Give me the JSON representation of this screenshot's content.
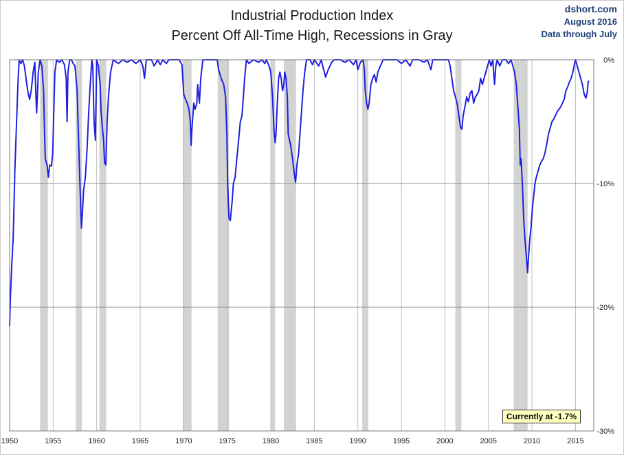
{
  "header": {
    "title_line1": "Industrial Production Index",
    "title_line2": "Percent Off All-Time High, Recessions in Gray",
    "credit_site": "dshort.com",
    "credit_date": "August 2016",
    "credit_note": "Data through July"
  },
  "annotation": {
    "current_label": "Currently at -1.7%"
  },
  "chart_data": {
    "type": "line",
    "title": "Industrial Production Index Percent Off All-Time High, Recessions in Gray",
    "xlabel": "",
    "ylabel": "",
    "xlim": [
      1950,
      2017.1
    ],
    "ylim": [
      -30,
      0
    ],
    "x_ticks": [
      1950,
      1955,
      1960,
      1965,
      1970,
      1975,
      1980,
      1985,
      1990,
      1995,
      2000,
      2005,
      2010,
      2015
    ],
    "y_ticks": [
      {
        "value": 0,
        "label": "0%"
      },
      {
        "value": -10,
        "label": "-10%"
      },
      {
        "value": -20,
        "label": "-20%"
      },
      {
        "value": -30,
        "label": "-30%"
      }
    ],
    "grid": true,
    "line_color": "#1f1fe0",
    "recession_color": "#d3d3d3",
    "recessions": [
      [
        1953.5,
        1954.4
      ],
      [
        1957.6,
        1958.3
      ],
      [
        1960.3,
        1961.1
      ],
      [
        1969.9,
        1970.9
      ],
      [
        1973.9,
        1975.2
      ],
      [
        1980.0,
        1980.5
      ],
      [
        1981.5,
        1982.9
      ],
      [
        1990.5,
        1991.2
      ],
      [
        2001.2,
        2001.9
      ],
      [
        2007.9,
        2009.5
      ]
    ],
    "series": [
      {
        "values": [
          [
            1950.0,
            -21.5
          ],
          [
            1950.1,
            -19.0
          ],
          [
            1950.25,
            -16.5
          ],
          [
            1950.4,
            -14.5
          ],
          [
            1950.5,
            -12.0
          ],
          [
            1950.6,
            -9.0
          ],
          [
            1950.75,
            -6.0
          ],
          [
            1950.9,
            -3.0
          ],
          [
            1951.0,
            -1.2
          ],
          [
            1951.1,
            0.0
          ],
          [
            1951.3,
            -0.3
          ],
          [
            1951.5,
            0.0
          ],
          [
            1951.7,
            -0.5
          ],
          [
            1951.9,
            -1.6
          ],
          [
            1952.1,
            -2.6
          ],
          [
            1952.3,
            -3.2
          ],
          [
            1952.5,
            -2.4
          ],
          [
            1952.7,
            -1.0
          ],
          [
            1952.9,
            -0.2
          ],
          [
            1953.0,
            -2.5
          ],
          [
            1953.1,
            -4.3
          ],
          [
            1953.3,
            -1.0
          ],
          [
            1953.5,
            0.0
          ],
          [
            1953.7,
            -0.5
          ],
          [
            1953.9,
            -2.5
          ],
          [
            1954.0,
            -5.5
          ],
          [
            1954.1,
            -8.0
          ],
          [
            1954.3,
            -8.5
          ],
          [
            1954.45,
            -9.5
          ],
          [
            1954.6,
            -8.5
          ],
          [
            1954.8,
            -8.6
          ],
          [
            1954.95,
            -7.6
          ],
          [
            1955.1,
            -3.5
          ],
          [
            1955.2,
            -1.0
          ],
          [
            1955.4,
            0.0
          ],
          [
            1955.7,
            -0.2
          ],
          [
            1956.0,
            0.0
          ],
          [
            1956.3,
            -0.4
          ],
          [
            1956.5,
            -1.5
          ],
          [
            1956.6,
            -5.0
          ],
          [
            1956.7,
            -1.0
          ],
          [
            1956.9,
            0.0
          ],
          [
            1957.1,
            0.0
          ],
          [
            1957.3,
            -0.3
          ],
          [
            1957.5,
            -0.5
          ],
          [
            1957.6,
            -1.2
          ],
          [
            1957.75,
            -2.5
          ],
          [
            1957.9,
            -6.0
          ],
          [
            1958.1,
            -10.5
          ],
          [
            1958.25,
            -13.6
          ],
          [
            1958.35,
            -12.5
          ],
          [
            1958.5,
            -10.5
          ],
          [
            1958.7,
            -9.5
          ],
          [
            1958.9,
            -7.2
          ],
          [
            1959.1,
            -4.0
          ],
          [
            1959.3,
            -1.5
          ],
          [
            1959.45,
            0.0
          ],
          [
            1959.55,
            -0.5
          ],
          [
            1959.7,
            -5.0
          ],
          [
            1959.85,
            -6.5
          ],
          [
            1960.0,
            0.0
          ],
          [
            1960.2,
            -0.5
          ],
          [
            1960.4,
            -2.0
          ],
          [
            1960.5,
            -4.0
          ],
          [
            1960.65,
            -5.5
          ],
          [
            1960.8,
            -6.5
          ],
          [
            1960.9,
            -8.3
          ],
          [
            1961.05,
            -8.5
          ],
          [
            1961.2,
            -5.0
          ],
          [
            1961.35,
            -3.0
          ],
          [
            1961.6,
            -1.0
          ],
          [
            1961.9,
            0.0
          ],
          [
            1962.5,
            -0.3
          ],
          [
            1963.0,
            0.0
          ],
          [
            1963.5,
            -0.2
          ],
          [
            1964.0,
            0.0
          ],
          [
            1964.5,
            -0.3
          ],
          [
            1965.0,
            0.0
          ],
          [
            1965.3,
            -0.5
          ],
          [
            1965.5,
            -1.5
          ],
          [
            1965.7,
            0.0
          ],
          [
            1966.3,
            0.0
          ],
          [
            1966.6,
            -0.5
          ],
          [
            1967.0,
            0.0
          ],
          [
            1967.3,
            -0.4
          ],
          [
            1967.6,
            0.0
          ],
          [
            1968.0,
            -0.3
          ],
          [
            1968.3,
            0.0
          ],
          [
            1968.7,
            0.0
          ],
          [
            1969.0,
            0.0
          ],
          [
            1969.5,
            0.0
          ],
          [
            1969.8,
            -0.4
          ],
          [
            1970.0,
            -2.8
          ],
          [
            1970.2,
            -3.2
          ],
          [
            1970.4,
            -3.5
          ],
          [
            1970.6,
            -4.0
          ],
          [
            1970.75,
            -5.0
          ],
          [
            1970.85,
            -6.9
          ],
          [
            1970.95,
            -5.5
          ],
          [
            1971.15,
            -3.5
          ],
          [
            1971.3,
            -4.0
          ],
          [
            1971.5,
            -3.5
          ],
          [
            1971.6,
            -2.0
          ],
          [
            1971.8,
            -3.5
          ],
          [
            1971.95,
            -1.5
          ],
          [
            1972.2,
            0.0
          ],
          [
            1973.0,
            0.0
          ],
          [
            1973.5,
            0.0
          ],
          [
            1973.85,
            0.0
          ],
          [
            1974.0,
            -0.8
          ],
          [
            1974.3,
            -1.5
          ],
          [
            1974.6,
            -2.0
          ],
          [
            1974.8,
            -3.0
          ],
          [
            1974.95,
            -6.0
          ],
          [
            1975.05,
            -10.0
          ],
          [
            1975.2,
            -12.8
          ],
          [
            1975.35,
            -13.0
          ],
          [
            1975.55,
            -11.5
          ],
          [
            1975.7,
            -10.0
          ],
          [
            1975.9,
            -9.5
          ],
          [
            1976.1,
            -8.0
          ],
          [
            1976.3,
            -6.5
          ],
          [
            1976.5,
            -5.0
          ],
          [
            1976.7,
            -4.5
          ],
          [
            1976.85,
            -3.0
          ],
          [
            1977.0,
            -1.5
          ],
          [
            1977.2,
            0.0
          ],
          [
            1977.5,
            -0.3
          ],
          [
            1978.0,
            0.0
          ],
          [
            1978.6,
            -0.2
          ],
          [
            1979.0,
            0.0
          ],
          [
            1979.3,
            -0.3
          ],
          [
            1979.5,
            0.0
          ],
          [
            1979.8,
            -0.5
          ],
          [
            1980.0,
            -1.0
          ],
          [
            1980.2,
            -3.0
          ],
          [
            1980.35,
            -5.5
          ],
          [
            1980.5,
            -6.7
          ],
          [
            1980.6,
            -6.0
          ],
          [
            1980.75,
            -3.5
          ],
          [
            1980.9,
            -1.5
          ],
          [
            1981.05,
            -1.0
          ],
          [
            1981.2,
            -1.5
          ],
          [
            1981.35,
            -2.5
          ],
          [
            1981.5,
            -2.0
          ],
          [
            1981.6,
            -1.0
          ],
          [
            1981.75,
            -1.5
          ],
          [
            1981.9,
            -3.0
          ],
          [
            1982.0,
            -6.0
          ],
          [
            1982.15,
            -6.5
          ],
          [
            1982.3,
            -7.0
          ],
          [
            1982.5,
            -8.0
          ],
          [
            1982.7,
            -9.2
          ],
          [
            1982.85,
            -9.9
          ],
          [
            1983.0,
            -8.5
          ],
          [
            1983.2,
            -7.5
          ],
          [
            1983.4,
            -5.5
          ],
          [
            1983.55,
            -4.0
          ],
          [
            1983.7,
            -2.5
          ],
          [
            1983.9,
            -1.0
          ],
          [
            1984.1,
            0.0
          ],
          [
            1984.5,
            0.0
          ],
          [
            1984.8,
            -0.4
          ],
          [
            1985.0,
            0.0
          ],
          [
            1985.5,
            -0.5
          ],
          [
            1985.8,
            0.0
          ],
          [
            1986.0,
            -0.6
          ],
          [
            1986.3,
            -1.4
          ],
          [
            1986.6,
            -0.8
          ],
          [
            1987.0,
            -0.2
          ],
          [
            1987.3,
            0.0
          ],
          [
            1988.0,
            0.0
          ],
          [
            1988.5,
            -0.2
          ],
          [
            1989.0,
            0.0
          ],
          [
            1989.5,
            -0.4
          ],
          [
            1989.8,
            0.0
          ],
          [
            1990.0,
            -0.8
          ],
          [
            1990.3,
            -0.2
          ],
          [
            1990.6,
            0.0
          ],
          [
            1990.75,
            -0.8
          ],
          [
            1990.85,
            -2.5
          ],
          [
            1991.0,
            -3.5
          ],
          [
            1991.15,
            -4.0
          ],
          [
            1991.3,
            -3.5
          ],
          [
            1991.5,
            -2.0
          ],
          [
            1991.7,
            -1.5
          ],
          [
            1991.9,
            -1.2
          ],
          [
            1992.1,
            -1.8
          ],
          [
            1992.3,
            -1.0
          ],
          [
            1992.6,
            -0.5
          ],
          [
            1992.9,
            0.0
          ],
          [
            1993.5,
            0.0
          ],
          [
            1994.0,
            0.0
          ],
          [
            1994.5,
            0.0
          ],
          [
            1995.0,
            -0.3
          ],
          [
            1995.5,
            0.0
          ],
          [
            1996.0,
            -0.5
          ],
          [
            1996.3,
            0.0
          ],
          [
            1997.0,
            0.0
          ],
          [
            1997.6,
            -0.2
          ],
          [
            1998.0,
            0.0
          ],
          [
            1998.4,
            -0.8
          ],
          [
            1998.6,
            0.0
          ],
          [
            1999.0,
            0.0
          ],
          [
            1999.5,
            0.0
          ],
          [
            2000.0,
            0.0
          ],
          [
            2000.4,
            0.0
          ],
          [
            2000.6,
            -0.5
          ],
          [
            2000.8,
            -1.5
          ],
          [
            2001.0,
            -2.5
          ],
          [
            2001.2,
            -3.0
          ],
          [
            2001.4,
            -3.5
          ],
          [
            2001.6,
            -4.5
          ],
          [
            2001.8,
            -5.5
          ],
          [
            2001.95,
            -5.6
          ],
          [
            2002.1,
            -4.5
          ],
          [
            2002.3,
            -3.8
          ],
          [
            2002.5,
            -3.0
          ],
          [
            2002.7,
            -3.4
          ],
          [
            2002.9,
            -2.7
          ],
          [
            2003.1,
            -2.5
          ],
          [
            2003.3,
            -3.5
          ],
          [
            2003.5,
            -3.0
          ],
          [
            2003.7,
            -2.8
          ],
          [
            2003.9,
            -2.5
          ],
          [
            2004.1,
            -1.5
          ],
          [
            2004.3,
            -2.0
          ],
          [
            2004.5,
            -1.5
          ],
          [
            2004.7,
            -1.0
          ],
          [
            2004.9,
            -0.5
          ],
          [
            2005.1,
            0.0
          ],
          [
            2005.3,
            -0.5
          ],
          [
            2005.5,
            0.0
          ],
          [
            2005.7,
            -2.0
          ],
          [
            2005.85,
            -0.5
          ],
          [
            2006.0,
            0.0
          ],
          [
            2006.3,
            -0.5
          ],
          [
            2006.6,
            0.0
          ],
          [
            2007.0,
            0.0
          ],
          [
            2007.3,
            -0.3
          ],
          [
            2007.6,
            0.0
          ],
          [
            2007.8,
            -0.5
          ],
          [
            2008.0,
            -1.0
          ],
          [
            2008.2,
            -2.0
          ],
          [
            2008.4,
            -4.0
          ],
          [
            2008.55,
            -5.5
          ],
          [
            2008.65,
            -8.5
          ],
          [
            2008.75,
            -8.0
          ],
          [
            2008.9,
            -10.0
          ],
          [
            2009.05,
            -12.8
          ],
          [
            2009.2,
            -14.5
          ],
          [
            2009.35,
            -15.8
          ],
          [
            2009.5,
            -17.2
          ],
          [
            2009.6,
            -16.0
          ],
          [
            2009.75,
            -14.5
          ],
          [
            2009.9,
            -13.5
          ],
          [
            2010.05,
            -12.0
          ],
          [
            2010.2,
            -11.0
          ],
          [
            2010.35,
            -10.0
          ],
          [
            2010.5,
            -9.5
          ],
          [
            2010.7,
            -9.0
          ],
          [
            2010.9,
            -8.5
          ],
          [
            2011.1,
            -8.2
          ],
          [
            2011.3,
            -8.0
          ],
          [
            2011.5,
            -7.5
          ],
          [
            2011.7,
            -6.8
          ],
          [
            2011.9,
            -6.0
          ],
          [
            2012.1,
            -5.5
          ],
          [
            2012.3,
            -5.0
          ],
          [
            2012.5,
            -4.8
          ],
          [
            2012.7,
            -4.5
          ],
          [
            2012.9,
            -4.2
          ],
          [
            2013.1,
            -4.0
          ],
          [
            2013.3,
            -3.8
          ],
          [
            2013.5,
            -3.5
          ],
          [
            2013.7,
            -3.2
          ],
          [
            2013.9,
            -2.5
          ],
          [
            2014.1,
            -2.2
          ],
          [
            2014.3,
            -1.8
          ],
          [
            2014.5,
            -1.5
          ],
          [
            2014.7,
            -1.0
          ],
          [
            2014.9,
            -0.3
          ],
          [
            2015.0,
            0.0
          ],
          [
            2015.2,
            -0.5
          ],
          [
            2015.4,
            -1.0
          ],
          [
            2015.6,
            -1.5
          ],
          [
            2015.8,
            -2.0
          ],
          [
            2016.0,
            -2.8
          ],
          [
            2016.2,
            -3.1
          ],
          [
            2016.35,
            -2.6
          ],
          [
            2016.45,
            -1.8
          ],
          [
            2016.55,
            -1.7
          ]
        ]
      }
    ]
  }
}
